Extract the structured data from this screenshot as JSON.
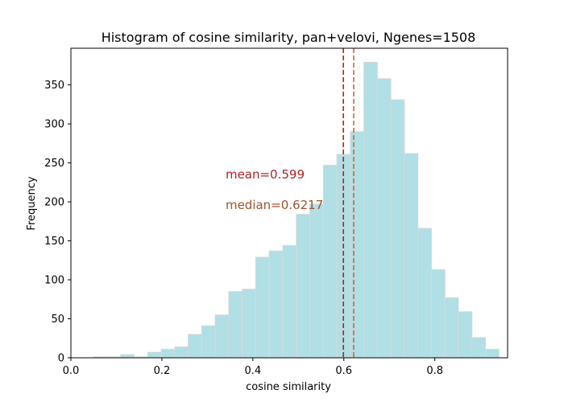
{
  "chart_data": {
    "type": "bar",
    "title": "Histogram of cosine similarity, pan+velovi, Ngenes=1508",
    "xlabel": "cosine similarity",
    "ylabel": "Frequency",
    "xlim": [
      0.0,
      0.96
    ],
    "ylim": [
      0,
      397
    ],
    "xticks": [
      0.0,
      0.2,
      0.4,
      0.6,
      0.8
    ],
    "xtick_labels": [
      "0.0",
      "0.2",
      "0.4",
      "0.6",
      "0.8"
    ],
    "yticks": [
      0,
      50,
      100,
      150,
      200,
      250,
      300,
      350
    ],
    "ytick_labels": [
      "0",
      "50",
      "100",
      "150",
      "200",
      "250",
      "300",
      "350"
    ],
    "bin_start": 0.05,
    "bin_width": 0.0297,
    "values": [
      1,
      1,
      4,
      1,
      7,
      11,
      14,
      30,
      41,
      55,
      85,
      88,
      129,
      137,
      144,
      184,
      197,
      247,
      261,
      290,
      379,
      358,
      331,
      262,
      166,
      113,
      77,
      59,
      26,
      11
    ],
    "bar_color": "#b0dfe5",
    "bar_edge_color": "#d8d8d8",
    "vlines": [
      {
        "x": 0.599,
        "color": "#b22222",
        "label": "mean=0.599"
      },
      {
        "x": 0.6217,
        "color": "#d2691e",
        "label": "median=0.6217"
      }
    ],
    "annotations": [
      {
        "text": "mean=0.599",
        "x": 0.34,
        "y": 230,
        "color": "#b22222"
      },
      {
        "text": "median=0.6217",
        "x": 0.34,
        "y": 191,
        "color": "#a0522d"
      }
    ],
    "grid": false
  }
}
